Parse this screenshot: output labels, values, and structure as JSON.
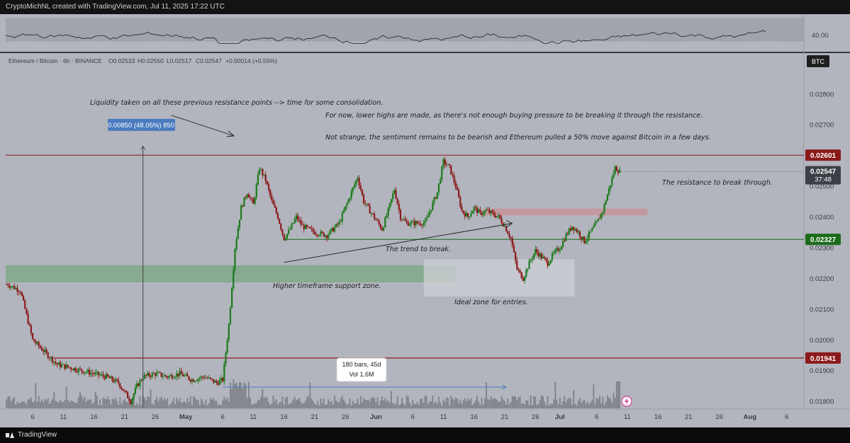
{
  "header": {
    "credit": "CryptoMichNL created with TradingView.com, Jul 11, 2025 17:22 UTC"
  },
  "footer": {
    "brand": "TradingView"
  },
  "legend": {
    "symbol": "Ethereum / Bitcoin · 6h · BINANCE",
    "open": "O0.02533",
    "high": "H0.02550",
    "low": "L0.02517",
    "close": "C0.02547",
    "change": "+0.00014 (+0.55%)"
  },
  "indicator": {
    "level_label": "40.00"
  },
  "axis": {
    "currency_badge": "BTC"
  },
  "price_tags": {
    "resistance": "0.02601",
    "current": "0.02547",
    "countdown": "37:48",
    "trend": "0.02327",
    "support": "0.01941"
  },
  "measure": {
    "price_range_label": "0.00850 (48.05%) 850",
    "bars_label": "180 bars, 45d",
    "vol_label": "Vol 1.6M"
  },
  "annotations": {
    "liquidity": "Liquidity taken on all these previous resistance points --> time for some consolidation.",
    "lower_highs": "For now, lower highs are made, as there's not enough buying pressure to be breaking it through the resistance.",
    "sentiment": "Not strange, the sentiment remains to be bearish and Ethereum pulled a 50% move against Bitcoin in a few days.",
    "resistance_break": "The resistance to break through.",
    "trend_break": "The trend to break.",
    "support_zone": "Higher timeframe support zone.",
    "ideal_zone": "Ideal zone for entries."
  },
  "colors": {
    "background": "#b2b5be",
    "up": "#1b7a1b",
    "down": "#8b1a1a",
    "resistance_line": "#8b1a1a",
    "trend_line": "#1b6b1b",
    "support_zone": "#7fa888",
    "resistance_zone": "#c4959a",
    "entry_zone": "#c9ccd3",
    "measure_blue": "#4b7bbf"
  },
  "chart_data": {
    "type": "candlestick",
    "title": "",
    "ylabel": "",
    "xlabel": "",
    "ylim": [
      0.01775,
      0.0288
    ],
    "y_ticks": [
      0.018,
      0.019,
      0.02,
      0.021,
      0.022,
      0.023,
      0.024,
      0.025,
      0.026,
      0.027,
      0.028
    ],
    "y_tick_labels": [
      "0.01800",
      "0.01900",
      "0.02000",
      "0.02100",
      "0.02200",
      "0.02300",
      "0.02400",
      "0.02500",
      "0.02600",
      "0.02700",
      "0.02800"
    ],
    "x_ticks": [
      {
        "label": "6",
        "day": 6
      },
      {
        "label": "11",
        "day": 11
      },
      {
        "label": "16",
        "day": 16
      },
      {
        "label": "21",
        "day": 21
      },
      {
        "label": "26",
        "day": 26
      },
      {
        "label": "May",
        "day": 31
      },
      {
        "label": "6",
        "day": 37
      },
      {
        "label": "11",
        "day": 42
      },
      {
        "label": "16",
        "day": 47
      },
      {
        "label": "21",
        "day": 52
      },
      {
        "label": "26",
        "day": 57
      },
      {
        "label": "Jun",
        "day": 62
      },
      {
        "label": "6",
        "day": 68
      },
      {
        "label": "11",
        "day": 73
      },
      {
        "label": "16",
        "day": 78
      },
      {
        "label": "21",
        "day": 83
      },
      {
        "label": "26",
        "day": 88
      },
      {
        "label": "Jul",
        "day": 92
      },
      {
        "label": "6",
        "day": 98
      },
      {
        "label": "11",
        "day": 103
      },
      {
        "label": "16",
        "day": 108
      },
      {
        "label": "21",
        "day": 113
      },
      {
        "label": "26",
        "day": 118
      },
      {
        "label": "Aug",
        "day": 123
      },
      {
        "label": "6",
        "day": 129
      }
    ],
    "x_range_days": [
      1.6,
      131.8
    ],
    "horizontal_levels": {
      "resistance": 0.02601,
      "trend": 0.02327,
      "support": 0.01941,
      "current": 0.02547
    },
    "zones": [
      {
        "name": "support",
        "day_from": 1.6,
        "day_to": 75.0,
        "y_from": 0.02187,
        "y_to": 0.02243
      },
      {
        "name": "entry",
        "day_from": 69.8,
        "day_to": 94.4,
        "y_from": 0.02141,
        "y_to": 0.02262
      },
      {
        "name": "resistance",
        "day_from": 79.5,
        "day_to": 106.3,
        "y_from": 0.02405,
        "y_to": 0.02427
      }
    ],
    "trendline": {
      "x": [
        47.0,
        84.2
      ],
      "y": [
        0.02252,
        0.02379
      ]
    },
    "measure": {
      "day": 24,
      "y_from": 0.0178,
      "y_to": 0.0263,
      "vol_day_from": 37.0,
      "vol_day_to": 83.2
    },
    "candles_path_daily": [
      [
        2,
        0.0218
      ],
      [
        4,
        0.0216
      ],
      [
        5,
        0.0208
      ],
      [
        6,
        0.02
      ],
      [
        8,
        0.0196
      ],
      [
        10,
        0.0192
      ],
      [
        12,
        0.0191
      ],
      [
        14,
        0.019
      ],
      [
        16,
        0.0189
      ],
      [
        18,
        0.0188
      ],
      [
        20,
        0.0186
      ],
      [
        21,
        0.0183
      ],
      [
        22,
        0.018
      ],
      [
        23,
        0.0185
      ],
      [
        24,
        0.0188
      ],
      [
        26,
        0.0189
      ],
      [
        28,
        0.0188
      ],
      [
        30,
        0.0189
      ],
      [
        32,
        0.0187
      ],
      [
        34,
        0.0188
      ],
      [
        36,
        0.0186
      ],
      [
        37,
        0.0187
      ],
      [
        38,
        0.0205
      ],
      [
        39,
        0.023
      ],
      [
        40,
        0.0243
      ],
      [
        41,
        0.0248
      ],
      [
        42,
        0.0244
      ],
      [
        43,
        0.0256
      ],
      [
        44,
        0.0252
      ],
      [
        45,
        0.0245
      ],
      [
        46,
        0.024
      ],
      [
        47,
        0.0233
      ],
      [
        48,
        0.0236
      ],
      [
        49,
        0.024
      ],
      [
        50,
        0.0237
      ],
      [
        52,
        0.0235
      ],
      [
        54,
        0.0234
      ],
      [
        56,
        0.0238
      ],
      [
        58,
        0.0248
      ],
      [
        59,
        0.0253
      ],
      [
        60,
        0.0245
      ],
      [
        61,
        0.0242
      ],
      [
        62,
        0.0239
      ],
      [
        63,
        0.0236
      ],
      [
        64,
        0.0242
      ],
      [
        65,
        0.0249
      ],
      [
        66,
        0.024
      ],
      [
        67,
        0.0238
      ],
      [
        68,
        0.0238
      ],
      [
        70,
        0.0238
      ],
      [
        72,
        0.0248
      ],
      [
        73,
        0.0258
      ],
      [
        74,
        0.0256
      ],
      [
        75,
        0.025
      ],
      [
        76,
        0.0242
      ],
      [
        77,
        0.024
      ],
      [
        78,
        0.0243
      ],
      [
        79,
        0.0241
      ],
      [
        80,
        0.0242
      ],
      [
        81,
        0.0241
      ],
      [
        82,
        0.024
      ],
      [
        83,
        0.0237
      ],
      [
        84,
        0.0233
      ],
      [
        85,
        0.0223
      ],
      [
        86,
        0.022
      ],
      [
        87,
        0.0225
      ],
      [
        88,
        0.0229
      ],
      [
        89,
        0.0227
      ],
      [
        90,
        0.0225
      ],
      [
        91,
        0.0228
      ],
      [
        92,
        0.023
      ],
      [
        93,
        0.0234
      ],
      [
        94,
        0.0237
      ],
      [
        95,
        0.0235
      ],
      [
        96,
        0.0232
      ],
      [
        97,
        0.0235
      ],
      [
        98,
        0.0238
      ],
      [
        99,
        0.0242
      ],
      [
        100,
        0.0249
      ],
      [
        101,
        0.0256
      ],
      [
        101.8,
        0.02547
      ]
    ]
  }
}
